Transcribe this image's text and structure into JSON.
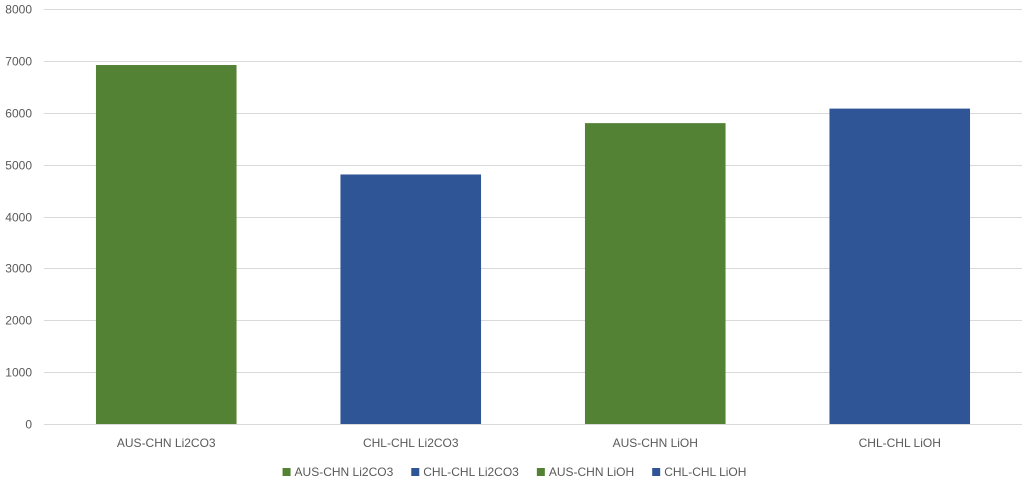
{
  "chart_data": {
    "type": "bar",
    "categories": [
      "AUS-CHN Li2CO3",
      "CHL-CHL Li2CO3",
      "AUS-CHN LiOH",
      "CHL-CHL LiOH"
    ],
    "values": [
      6920,
      4810,
      5800,
      6080
    ],
    "colors": [
      "#548235",
      "#2f5597",
      "#548235",
      "#2f5597"
    ],
    "title": "",
    "xlabel": "",
    "ylabel": "",
    "ylim": [
      0,
      8000
    ],
    "yticks": [
      0,
      1000,
      2000,
      3000,
      4000,
      5000,
      6000,
      7000,
      8000
    ],
    "grid": true,
    "legend": {
      "position": "bottom",
      "entries": [
        {
          "label": "AUS-CHN Li2CO3",
          "color": "#548235"
        },
        {
          "label": "CHL-CHL Li2CO3",
          "color": "#2f5597"
        },
        {
          "label": "AUS-CHN LiOH",
          "color": "#548235"
        },
        {
          "label": "CHL-CHL LiOH",
          "color": "#2f5597"
        }
      ]
    }
  }
}
